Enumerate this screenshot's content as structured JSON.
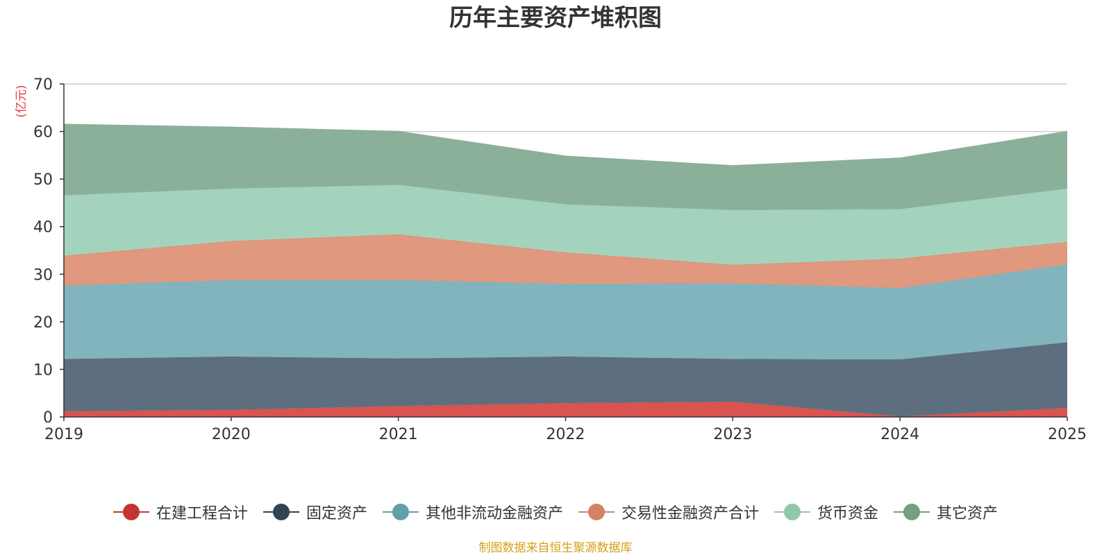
{
  "chart_data": {
    "type": "area",
    "stacked": true,
    "title": "历年主要资产堆积图",
    "ylabel": "(亿元)",
    "xlabel": "",
    "ylim": [
      0,
      70
    ],
    "yticks": [
      0,
      10,
      20,
      30,
      40,
      50,
      60,
      70
    ],
    "categories": [
      "2019",
      "2020",
      "2021",
      "2022",
      "2023",
      "2024",
      "2025"
    ],
    "series": [
      {
        "name": "在建工程合计",
        "color": "#d9534f",
        "legend_color": "#c23531",
        "values": [
          1.2,
          1.5,
          2.3,
          2.9,
          3.2,
          0.1,
          1.9
        ]
      },
      {
        "name": "固定资产",
        "color": "#5d6e7e",
        "legend_color": "#2f4554",
        "values": [
          11.0,
          11.2,
          10.0,
          9.8,
          9.0,
          12.0,
          13.8
        ]
      },
      {
        "name": "其他非流动金融资产",
        "color": "#82b4bd",
        "legend_color": "#61a0a8",
        "values": [
          15.4,
          16.1,
          16.5,
          15.3,
          15.9,
          15.0,
          16.4
        ]
      },
      {
        "name": "交易性金融资产合计",
        "color": "#e0987e",
        "legend_color": "#d48265",
        "values": [
          6.3,
          8.2,
          9.6,
          6.6,
          3.9,
          6.2,
          4.7
        ]
      },
      {
        "name": "货币资金",
        "color": "#a4d3bd",
        "legend_color": "#91c7ae",
        "values": [
          12.7,
          11.0,
          10.4,
          10.1,
          11.5,
          10.4,
          11.2
        ]
      },
      {
        "name": "其它资产",
        "color": "#8bb09a",
        "legend_color": "#749f83",
        "values": [
          15.0,
          13.0,
          11.3,
          10.2,
          9.4,
          10.8,
          12.1
        ]
      }
    ]
  },
  "source_note": "制图数据来自恒生聚源数据库"
}
